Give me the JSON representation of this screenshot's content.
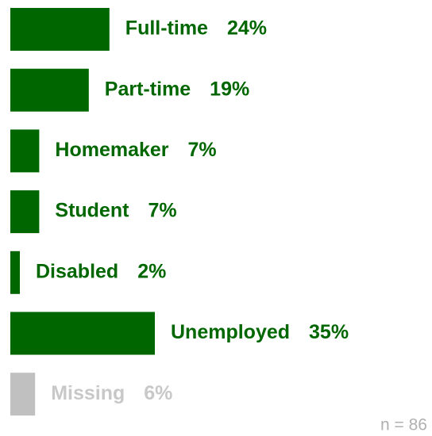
{
  "chart_data": {
    "type": "hbar",
    "categories": [
      "Full-time",
      "Part-time",
      "Homemaker",
      "Student",
      "Disabled",
      "Unemployed",
      "Missing"
    ],
    "values": [
      24,
      19,
      7,
      7,
      2,
      35,
      6
    ],
    "value_labels": [
      "24%",
      "19%",
      "7%",
      "7%",
      "2%",
      "35%",
      "6%"
    ],
    "colors": [
      "#006600",
      "#006600",
      "#006600",
      "#006600",
      "#006600",
      "#006600",
      "#c0c0c0"
    ],
    "label_colors": [
      "#006600",
      "#006600",
      "#006600",
      "#006600",
      "#006600",
      "#006600",
      "#c8c8c8"
    ],
    "annotation": "n = 86"
  }
}
